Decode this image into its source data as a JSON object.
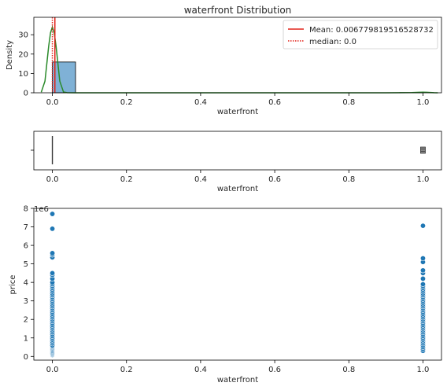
{
  "chart_data": [
    {
      "type": "bar",
      "title": "waterfront Distribution",
      "xlabel": "waterfront",
      "ylabel": "Density",
      "xlim": [
        -0.05,
        1.05
      ],
      "ylim": [
        0,
        39
      ],
      "xticks": [
        0.0,
        0.2,
        0.4,
        0.6,
        0.8,
        1.0
      ],
      "xtick_labels": [
        "0.0",
        "0.2",
        "0.4",
        "0.6",
        "0.8",
        "1.0"
      ],
      "yticks": [
        0,
        10,
        20,
        30
      ],
      "ytick_labels": [
        "0",
        "10",
        "20",
        "30"
      ],
      "histogram": {
        "bins": [
          {
            "x0": 0.0,
            "x1": 0.0625,
            "density": 15.9
          },
          {
            "x0": 0.9375,
            "x1": 1.0,
            "density": 0.11
          }
        ],
        "color": "#7fb1d6",
        "edge": "#000000"
      },
      "kde": {
        "color": "#2a8a2a",
        "x": [
          -0.03,
          -0.02,
          -0.01,
          -0.005,
          0.0,
          0.005,
          0.01,
          0.02,
          0.03,
          0.04,
          0.06,
          0.1,
          0.3,
          0.6,
          0.9,
          0.97,
          0.99,
          1.0,
          1.01,
          1.03,
          1.04
        ],
        "y": [
          0.3,
          6,
          24,
          31,
          34,
          31,
          24,
          6,
          0.4,
          0.05,
          0.02,
          0.01,
          0.01,
          0.01,
          0.01,
          0.08,
          0.25,
          0.3,
          0.25,
          0.05,
          0.01
        ]
      },
      "mean": {
        "value": 0.006779819516528732,
        "color": "#e2231a",
        "label": "Mean: 0.006779819516528732"
      },
      "median": {
        "value": 0.0,
        "color": "#e2231a",
        "label": "median: 0.0"
      },
      "legend": "upper right"
    },
    {
      "type": "box",
      "xlabel": "waterfront",
      "xlim": [
        -0.05,
        1.05
      ],
      "xticks": [
        0.0,
        0.2,
        0.4,
        0.6,
        0.8,
        1.0
      ],
      "xtick_labels": [
        "0.0",
        "0.2",
        "0.4",
        "0.6",
        "0.8",
        "1.0"
      ],
      "box": {
        "q1": 0.0,
        "median": 0.0,
        "q3": 0.0,
        "whisker_low": 0.0,
        "whisker_high": 0.0
      },
      "outliers": [
        1.0
      ]
    },
    {
      "type": "scatter",
      "xlabel": "waterfront",
      "ylabel": "price",
      "y_scale_label": "1e6",
      "xlim": [
        -0.05,
        1.05
      ],
      "ylim": [
        -0.2,
        8.0
      ],
      "xticks": [
        0.0,
        0.2,
        0.4,
        0.6,
        0.8,
        1.0
      ],
      "xtick_labels": [
        "0.0",
        "0.2",
        "0.4",
        "0.6",
        "0.8",
        "1.0"
      ],
      "yticks": [
        0,
        1,
        2,
        3,
        4,
        5,
        6,
        7,
        8
      ],
      "ytick_labels": [
        "0",
        "1",
        "2",
        "3",
        "4",
        "5",
        "6",
        "7",
        "8"
      ],
      "color": "#1f77b4",
      "points": {
        "x0": [
          0.08,
          0.12,
          0.16,
          0.2,
          0.25,
          0.3,
          0.35,
          0.4,
          0.45,
          0.5,
          0.55,
          0.6,
          0.7,
          0.8,
          0.9,
          1.0,
          1.1,
          1.2,
          1.3,
          1.4,
          1.5,
          1.6,
          1.7,
          1.8,
          1.9,
          2.0,
          2.1,
          2.2,
          2.3,
          2.4,
          2.5,
          2.6,
          2.7,
          2.8,
          2.9,
          3.0,
          3.1,
          3.2,
          3.3,
          3.4,
          3.5,
          3.6,
          3.7,
          3.8,
          3.9,
          4.0,
          4.2,
          4.4,
          4.5,
          5.35,
          5.5,
          5.58,
          6.9,
          7.7
        ],
        "x1": [
          0.3,
          0.4,
          0.5,
          0.6,
          0.7,
          0.8,
          0.9,
          1.0,
          1.1,
          1.2,
          1.3,
          1.4,
          1.5,
          1.6,
          1.7,
          1.8,
          1.9,
          2.0,
          2.1,
          2.2,
          2.3,
          2.4,
          2.5,
          2.6,
          2.7,
          2.8,
          2.9,
          3.0,
          3.1,
          3.2,
          3.3,
          3.4,
          3.5,
          3.6,
          3.7,
          3.8,
          3.9,
          4.2,
          4.5,
          4.65,
          5.1,
          5.3,
          7.06
        ]
      }
    }
  ]
}
